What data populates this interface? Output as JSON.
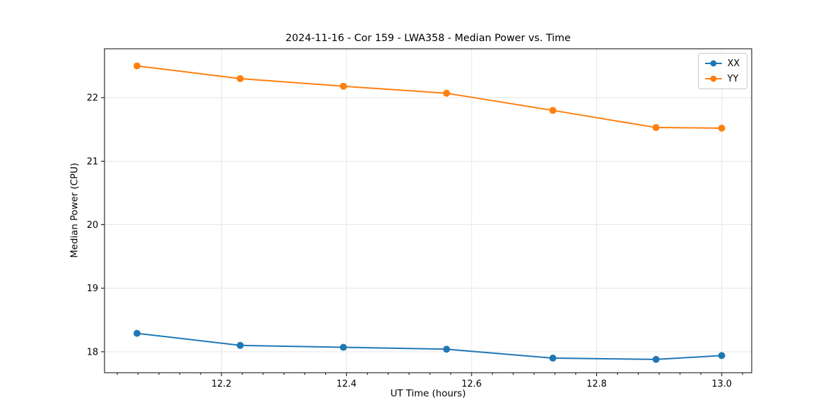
{
  "chart_data": {
    "type": "line",
    "title": "2024-11-16 - Cor 159 - LWA358 - Median Power vs. Time",
    "xlabel": "UT Time (hours)",
    "ylabel": "Median Power (CPU)",
    "x": [
      12.065,
      12.23,
      12.395,
      12.56,
      12.73,
      12.895,
      13.0
    ],
    "series": [
      {
        "name": "XX",
        "color": "#1f77b4",
        "values": [
          18.29,
          18.1,
          18.07,
          18.04,
          17.9,
          17.88,
          17.94
        ]
      },
      {
        "name": "YY",
        "color": "#ff7f0e",
        "values": [
          22.5,
          22.3,
          22.18,
          22.07,
          21.8,
          21.53,
          21.52
        ]
      }
    ],
    "xlim": [
      12.013,
      13.048
    ],
    "ylim": [
      17.67,
      22.77
    ],
    "xticks": [
      12.2,
      12.4,
      12.6,
      12.8,
      13.0
    ],
    "xtick_labels": [
      "12.2",
      "12.4",
      "12.6",
      "12.8",
      "13.0"
    ],
    "x_minor_step": 0.0333333,
    "yticks": [
      18,
      19,
      20,
      21,
      22
    ],
    "ytick_labels": [
      "18",
      "19",
      "20",
      "21",
      "22"
    ],
    "grid": true,
    "grid_color": "#e6e6e6",
    "spine_color": "#000000",
    "legend_position": "upper right",
    "marker": "circle",
    "background_color": "#ffffff"
  }
}
